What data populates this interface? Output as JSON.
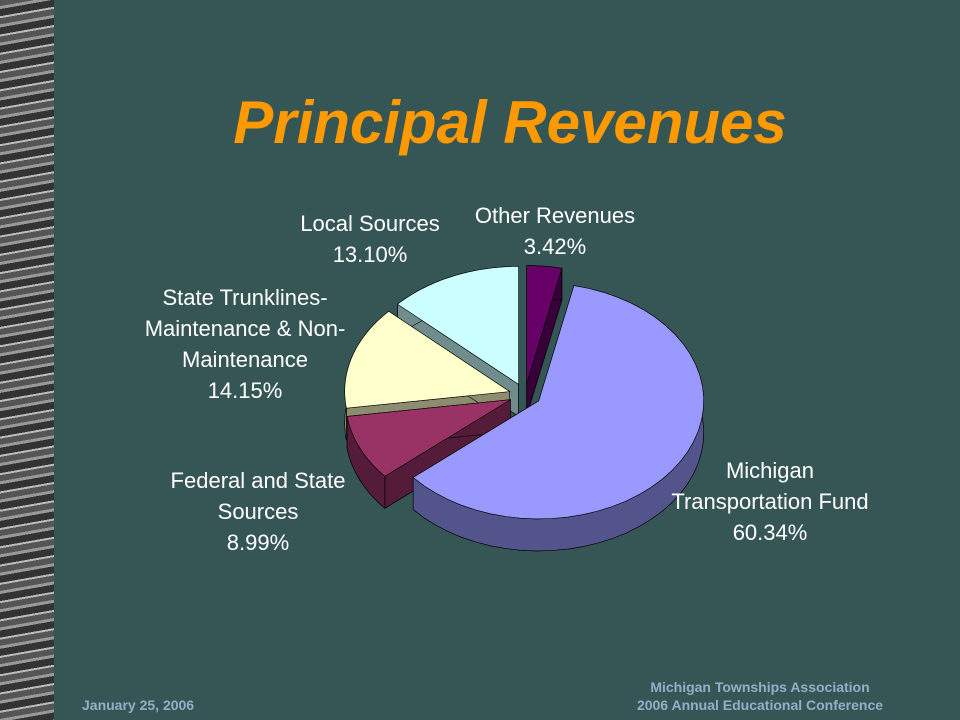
{
  "title": "Principal Revenues",
  "chart_data": {
    "type": "pie",
    "categories": [
      "Other Revenues",
      "Michigan Transportation Fund",
      "Federal and State Sources",
      "State Trunklines-Maintenance & Non-Maintenance",
      "Local Sources"
    ],
    "values": [
      3.42,
      60.34,
      8.99,
      14.15,
      13.1
    ],
    "value_labels": [
      "3.42%",
      "60.34%",
      "8.99%",
      "14.15%",
      "13.10%"
    ],
    "colors": [
      "#660066",
      "#9999ff",
      "#993366",
      "#ffffcc",
      "#ccffff"
    ]
  },
  "footer": {
    "date": "January 25, 2006",
    "organization": "Michigan Townships Association",
    "event": "2006 Annual Educational Conference"
  }
}
